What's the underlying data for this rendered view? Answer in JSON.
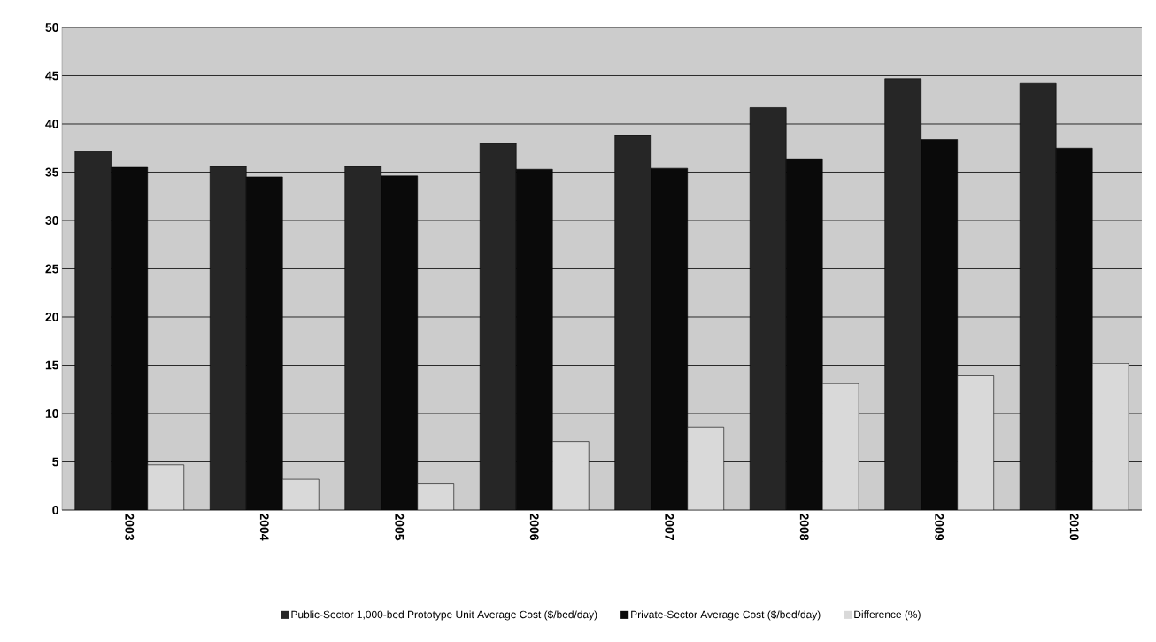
{
  "chart_data": {
    "type": "bar",
    "categories": [
      "2003",
      "2004",
      "2005",
      "2006",
      "2007",
      "2008",
      "2009",
      "2010"
    ],
    "series": [
      {
        "name": "Public-Sector 1,000-bed Prototype Unit Average Cost ($/bed/day)",
        "color": "#262626",
        "values": [
          37.2,
          35.6,
          35.6,
          38.0,
          38.8,
          41.7,
          44.7,
          44.2
        ]
      },
      {
        "name": "Private-Sector Average Cost ($/bed/day)",
        "color": "#0a0a0a",
        "values": [
          35.5,
          34.5,
          34.6,
          35.3,
          35.4,
          36.4,
          38.4,
          37.5
        ]
      },
      {
        "name": "Difference (%)",
        "color": "#d9d9d9",
        "values": [
          4.7,
          3.2,
          2.7,
          7.1,
          8.6,
          13.1,
          13.9,
          15.2
        ]
      }
    ],
    "ylim": [
      0,
      50
    ],
    "yticks": [
      0,
      5,
      10,
      15,
      20,
      25,
      30,
      35,
      40,
      45,
      50
    ],
    "grid": "y",
    "legend": "bottom"
  }
}
